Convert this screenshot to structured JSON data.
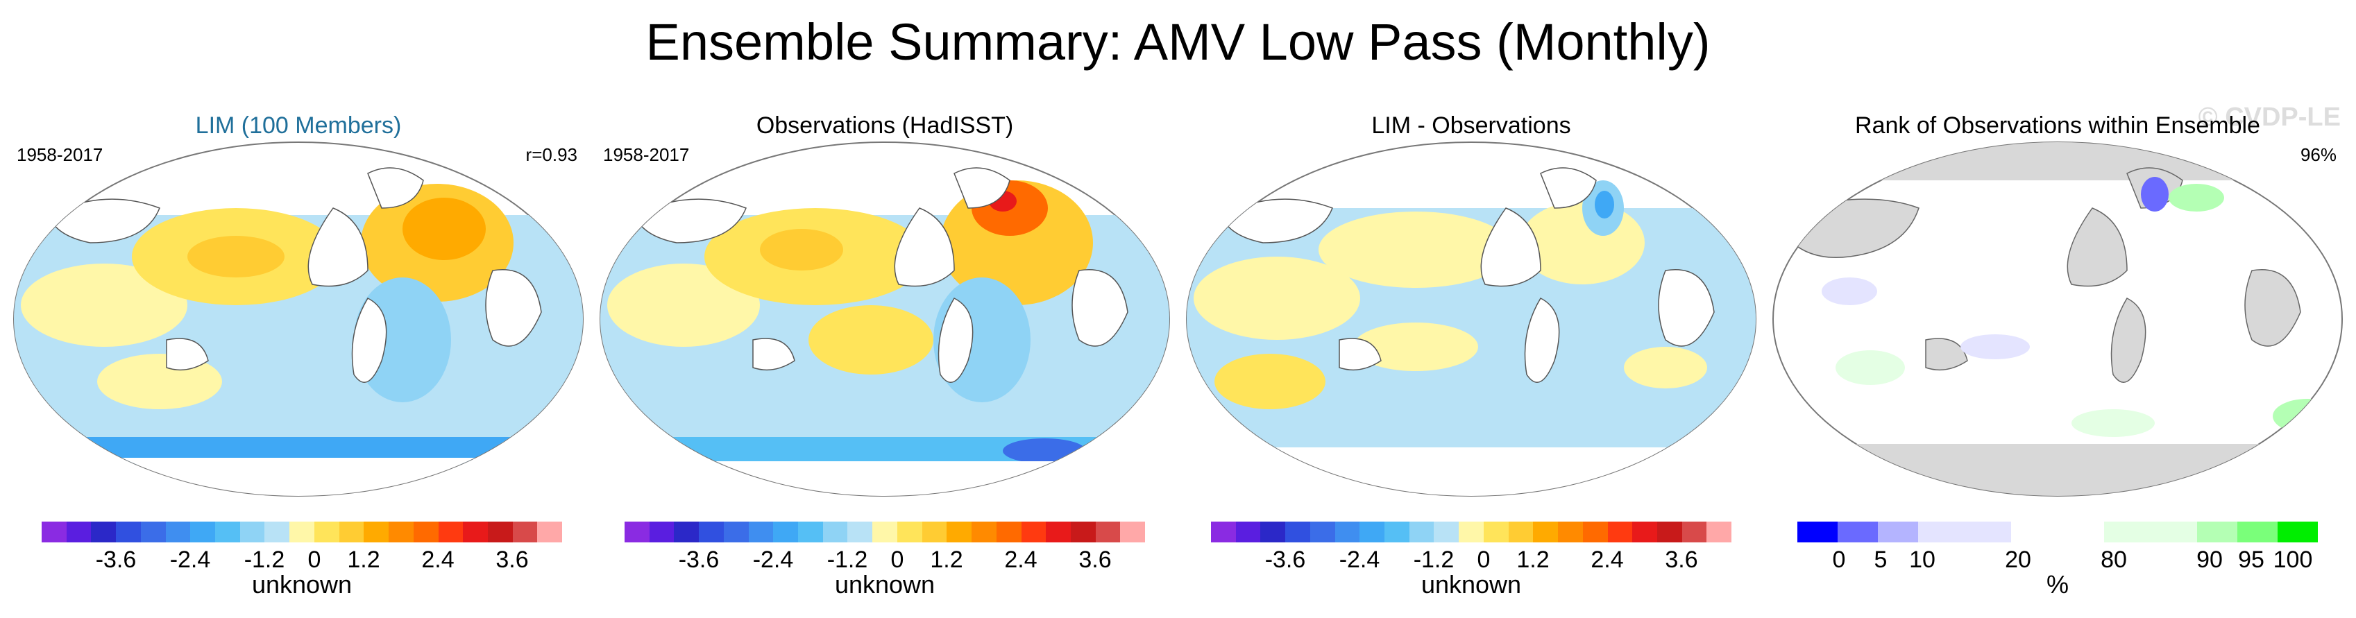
{
  "title": "Ensemble Summary: AMV Low Pass (Monthly)",
  "watermark": "© CVDP-LE",
  "panels": [
    {
      "title": "LIM (100 Members)",
      "period": "1958-2017",
      "stat": "r=0.93",
      "colorbar_label": "unknown"
    },
    {
      "title": "Observations (HadISST)",
      "period": "1958-2017",
      "stat": "",
      "colorbar_label": "unknown"
    },
    {
      "title": "LIM - Observations",
      "period": "",
      "stat": "",
      "colorbar_label": "unknown"
    },
    {
      "title": "Rank of Observations within Ensemble",
      "period": "",
      "stat": "96%",
      "colorbar_label": "%"
    }
  ],
  "diverging_scale": {
    "colors": [
      "#8a2be2",
      "#5a1ee0",
      "#2b28c8",
      "#3050e0",
      "#3b6de8",
      "#3f8ef0",
      "#3fa8f5",
      "#55bff5",
      "#8fd3f5",
      "#b8e2f6",
      "#fff7a8",
      "#ffe45a",
      "#ffcc33",
      "#ffaa00",
      "#ff8a00",
      "#ff6a00",
      "#ff3a10",
      "#e81a1a",
      "#c81a1a",
      "#d84a4a",
      "#ffa8a8"
    ],
    "tick_labels": [
      "-3.6",
      "-2.4",
      "-1.2",
      "0",
      "1.2",
      "2.4",
      "3.6"
    ]
  },
  "rank_scale": {
    "colors": [
      "#0000ff",
      "#6a6aff",
      "#b4b4ff",
      "#e4e4ff",
      "#ffffff",
      "#e4ffe4",
      "#b4ffb4",
      "#7aff7a",
      "#00ee00"
    ],
    "tick_labels": [
      "0",
      "5",
      "10",
      "20",
      "80",
      "90",
      "95",
      "100"
    ]
  }
}
